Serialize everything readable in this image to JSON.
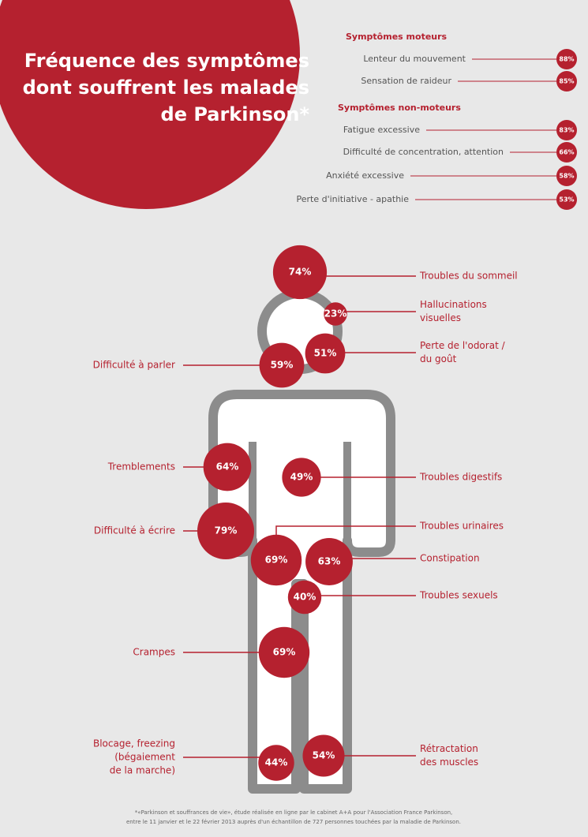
{
  "title": [
    "Fréquence des symptômes",
    "dont souffrent les malades",
    "de Parkinson*"
  ],
  "groups": [
    {
      "heading": "Symptômes moteurs",
      "items": [
        {
          "label": "Lenteur du mouvement",
          "value": 88,
          "value_label": "88%"
        },
        {
          "label": "Sensation de raideur",
          "value": 85,
          "value_label": "85%"
        }
      ]
    },
    {
      "heading": "Symptômes non-moteurs",
      "items": [
        {
          "label": "Fatigue excessive",
          "value": 83,
          "value_label": "83%"
        },
        {
          "label": "Difficulté de concentration, attention",
          "value": 66,
          "value_label": "66%"
        },
        {
          "label": "Anxiété excessive",
          "value": 58,
          "value_label": "58%"
        },
        {
          "label": "Perte d'initiative - apathie",
          "value": 53,
          "value_label": "53%"
        }
      ]
    }
  ],
  "body_symptoms": [
    {
      "label": [
        "Troubles du sommeil"
      ],
      "value": 74,
      "value_label": "74%"
    },
    {
      "label": [
        "Hallucinations",
        "visuelles"
      ],
      "value": 23,
      "value_label": "23%"
    },
    {
      "label": [
        "Perte de l'odorat /",
        "du goût"
      ],
      "value": 51,
      "value_label": "51%"
    },
    {
      "label": [
        "Difficulté à parler"
      ],
      "value": 59,
      "value_label": "59%"
    },
    {
      "label": [
        "Tremblements"
      ],
      "value": 64,
      "value_label": "64%"
    },
    {
      "label": [
        "Troubles digestifs"
      ],
      "value": 49,
      "value_label": "49%"
    },
    {
      "label": [
        "Difficulté à écrire"
      ],
      "value": 79,
      "value_label": "79%"
    },
    {
      "label": [
        "Troubles urinaires"
      ],
      "value": 69,
      "value_label": "69%"
    },
    {
      "label": [
        "Constipation"
      ],
      "value": 63,
      "value_label": "63%"
    },
    {
      "label": [
        "Troubles sexuels"
      ],
      "value": 40,
      "value_label": "40%"
    },
    {
      "label": [
        "Crampes"
      ],
      "value": 69,
      "value_label": "69%"
    },
    {
      "label": [
        "Blocage, freezing",
        "(bégaiement",
        "de la marche)"
      ],
      "value": 44,
      "value_label": "44%"
    },
    {
      "label": [
        "Rétractation",
        "des muscles"
      ],
      "value": 54,
      "value_label": "54%"
    }
  ],
  "footnote": [
    "*«Parkinson et souffrances de vie», étude réalisée en ligne par le cabinet A+A pour l'Association France Parkinson,",
    "entre le 11 janvier et le 22 février 2013 auprès d'un échantillon de 727 personnes touchées par la maladie de Parkinson."
  ]
}
